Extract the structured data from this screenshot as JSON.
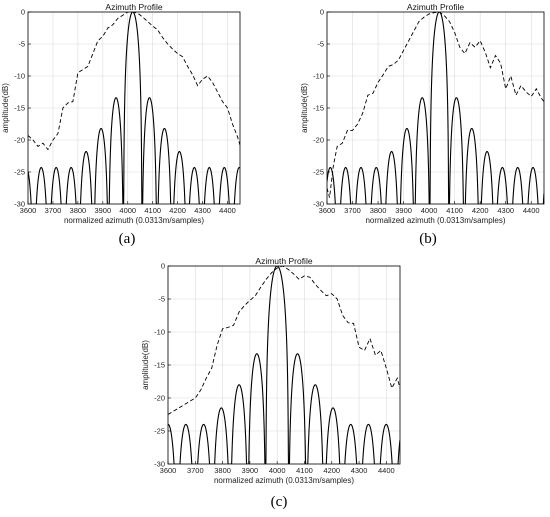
{
  "chart_data": [
    {
      "type": "line",
      "panel": "a",
      "caption": "(a)",
      "title": "Azimuth Profile",
      "xlabel": "normalized azimuth (0.0313m/samples)",
      "ylabel": "amplitude(dB)",
      "xlim": [
        3600,
        4450
      ],
      "ylim": [
        -30,
        0
      ],
      "xticks": [
        3600,
        3700,
        3800,
        3900,
        4000,
        4100,
        4200,
        4300,
        4400
      ],
      "yticks": [
        0,
        -5,
        -10,
        -15,
        -20,
        -25,
        -30
      ],
      "grid": true,
      "series": [
        {
          "style": "solid",
          "center": 4020,
          "mainlobe_width": 37,
          "sidelobe_spacing": 60,
          "lobe_peaks": [
            -24.3,
            -21.8,
            -18.2,
            -13.4,
            0,
            -13.4,
            -18.2,
            -21.8,
            -24.3
          ]
        },
        {
          "style": "dashed",
          "x": [
            3600,
            3620,
            3640,
            3660,
            3680,
            3700,
            3720,
            3740,
            3760,
            3780,
            3800,
            3820,
            3840,
            3860,
            3880,
            3900,
            3920,
            3940,
            3960,
            3980,
            4000,
            4020,
            4040,
            4060,
            4080,
            4100,
            4120,
            4140,
            4160,
            4180,
            4200,
            4220,
            4240,
            4260,
            4280,
            4300,
            4320,
            4340,
            4360,
            4380,
            4400,
            4420,
            4440,
            4450
          ],
          "y": [
            -19.3,
            -20,
            -21,
            -20.5,
            -21.5,
            -20,
            -19,
            -15,
            -14.2,
            -14,
            -9.5,
            -9,
            -8.5,
            -6.5,
            -4.5,
            -3.8,
            -2.5,
            -2,
            -1,
            -0.5,
            0,
            0,
            -0.2,
            -0.8,
            -1.5,
            -2.2,
            -2.8,
            -4,
            -5,
            -5.8,
            -6.5,
            -7,
            -8.5,
            -9.8,
            -11.5,
            -10.5,
            -10,
            -11,
            -12.5,
            -14,
            -15,
            -17.5,
            -19.5,
            -20.8
          ]
        }
      ]
    },
    {
      "type": "line",
      "panel": "b",
      "caption": "(b)",
      "title": "Azimuth Profile",
      "xlabel": "normalized azimuth (0.0313m/samples)",
      "ylabel": "amplitude(dB)",
      "xlim": [
        3600,
        4450
      ],
      "ylim": [
        -30,
        0
      ],
      "xticks": [
        3600,
        3700,
        3800,
        3900,
        4000,
        4100,
        4200,
        4300,
        4400
      ],
      "yticks": [
        0,
        -5,
        -10,
        -15,
        -20,
        -25,
        -30
      ],
      "grid": true,
      "series": [
        {
          "style": "solid",
          "center": 4040,
          "mainlobe_width": 37,
          "sidelobe_spacing": 60,
          "lobe_peaks": [
            -24.3,
            -21.8,
            -18.2,
            -13.4,
            0,
            -13.4,
            -18.2,
            -21.8,
            -24.3,
            -24.3
          ]
        },
        {
          "style": "dashed",
          "x": [
            3600,
            3610,
            3625,
            3640,
            3660,
            3680,
            3700,
            3720,
            3740,
            3760,
            3780,
            3800,
            3820,
            3840,
            3860,
            3880,
            3900,
            3920,
            3940,
            3960,
            3980,
            4000,
            4020,
            4040,
            4060,
            4080,
            4100,
            4120,
            4140,
            4160,
            4180,
            4200,
            4220,
            4240,
            4260,
            4280,
            4300,
            4320,
            4340,
            4360,
            4380,
            4400,
            4420,
            4440,
            4450
          ],
          "y": [
            -27.5,
            -29,
            -24,
            -21,
            -20.5,
            -18.5,
            -18.5,
            -17.5,
            -15.8,
            -13,
            -12.7,
            -11,
            -9.8,
            -8.5,
            -8.2,
            -7.5,
            -6,
            -4.5,
            -3,
            -1.5,
            -0.8,
            -0.3,
            -0.1,
            0,
            -0.6,
            -1.5,
            -3.2,
            -5.5,
            -6.5,
            -4.8,
            -5.5,
            -4.5,
            -6.3,
            -8.7,
            -6.8,
            -8,
            -12,
            -10,
            -13,
            -11.5,
            -12.5,
            -13.2,
            -12,
            -13.5,
            -14
          ]
        }
      ]
    },
    {
      "type": "line",
      "panel": "c",
      "caption": "(c)",
      "title": "Azimuth Profile",
      "xlabel": "normalized azimuth (0.0313m/samples)",
      "ylabel": "amplitude(dB)",
      "xlim": [
        3600,
        4450
      ],
      "ylim": [
        -30,
        0
      ],
      "xticks": [
        3600,
        3700,
        3800,
        3900,
        4000,
        4100,
        4200,
        4300,
        4400
      ],
      "yticks": [
        0,
        -5,
        -10,
        -15,
        -20,
        -25,
        -30
      ],
      "grid": true,
      "series": [
        {
          "style": "solid",
          "center": 4000,
          "mainlobe_width": 42,
          "sidelobe_spacing": 65,
          "lobe_peaks": [
            -24,
            -21.5,
            -18,
            -13.3,
            0,
            -13.3,
            -18,
            -21.5,
            -24
          ]
        },
        {
          "style": "dashed",
          "x": [
            3600,
            3620,
            3640,
            3660,
            3680,
            3700,
            3720,
            3740,
            3760,
            3780,
            3800,
            3820,
            3840,
            3860,
            3880,
            3900,
            3920,
            3940,
            3960,
            3980,
            4000,
            4020,
            4040,
            4060,
            4080,
            4100,
            4120,
            4140,
            4160,
            4180,
            4200,
            4220,
            4240,
            4260,
            4280,
            4300,
            4320,
            4340,
            4360,
            4380,
            4400,
            4420,
            4440,
            4450
          ],
          "y": [
            -22.5,
            -22,
            -21.5,
            -21,
            -20.5,
            -20,
            -18.8,
            -17,
            -15.5,
            -12,
            -9.5,
            -9.3,
            -9,
            -7,
            -6,
            -5.2,
            -4.5,
            -3.2,
            -2,
            -1,
            -0.3,
            0,
            -0.5,
            -1.2,
            -2,
            -1.5,
            -1.7,
            -2.8,
            -3.7,
            -4.5,
            -4.2,
            -5,
            -7.5,
            -8.6,
            -8.7,
            -12.3,
            -12.8,
            -11,
            -13.5,
            -12.8,
            -15.5,
            -18.5,
            -17,
            -18.5
          ]
        }
      ]
    }
  ]
}
